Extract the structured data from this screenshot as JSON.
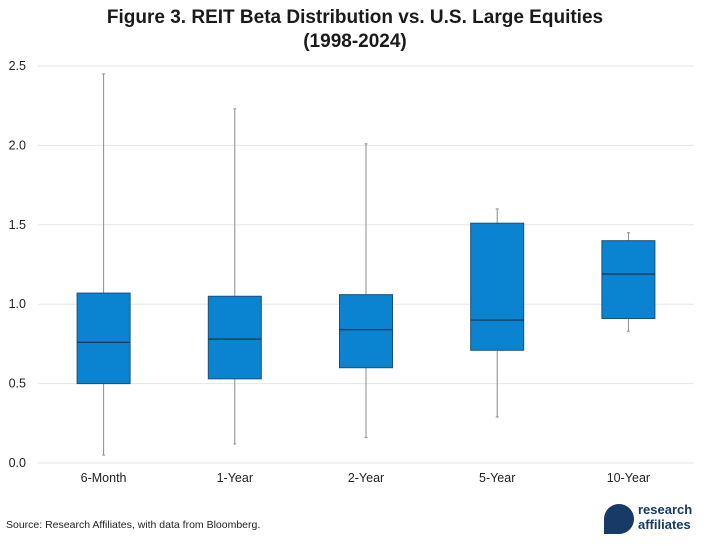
{
  "title_line1": "Figure 3. REIT Beta Distribution vs. U.S. Large Equities",
  "title_line2": "(1998-2024)",
  "source": "Source: Research Affiliates, with data from Bloomberg.",
  "logo": {
    "line1": "research",
    "line2": "affiliates"
  },
  "colors": {
    "box_fill": "#0a84d0",
    "box_stroke": "#1b4f7a",
    "whisker": "#8c8c8c",
    "grid": "#e6e6e6",
    "logo": "#173a66"
  },
  "chart_data": {
    "type": "boxplot",
    "categories": [
      "6-Month",
      "1-Year",
      "2-Year",
      "5-Year",
      "10-Year"
    ],
    "boxes": [
      {
        "min": 0.05,
        "q1": 0.5,
        "median": 0.76,
        "q3": 1.07,
        "max": 2.45
      },
      {
        "min": 0.12,
        "q1": 0.53,
        "median": 0.78,
        "q3": 1.05,
        "max": 2.23
      },
      {
        "min": 0.16,
        "q1": 0.6,
        "median": 0.84,
        "q3": 1.06,
        "max": 2.01
      },
      {
        "min": 0.29,
        "q1": 0.71,
        "median": 0.9,
        "q3": 1.51,
        "max": 1.6
      },
      {
        "min": 0.83,
        "q1": 0.91,
        "median": 1.19,
        "q3": 1.4,
        "max": 1.45
      }
    ],
    "y_ticks": [
      "0.0",
      "0.5",
      "1.0",
      "1.5",
      "2.0",
      "2.5"
    ],
    "ylim": [
      0,
      2.5
    ],
    "grid": true,
    "legend": "none"
  }
}
